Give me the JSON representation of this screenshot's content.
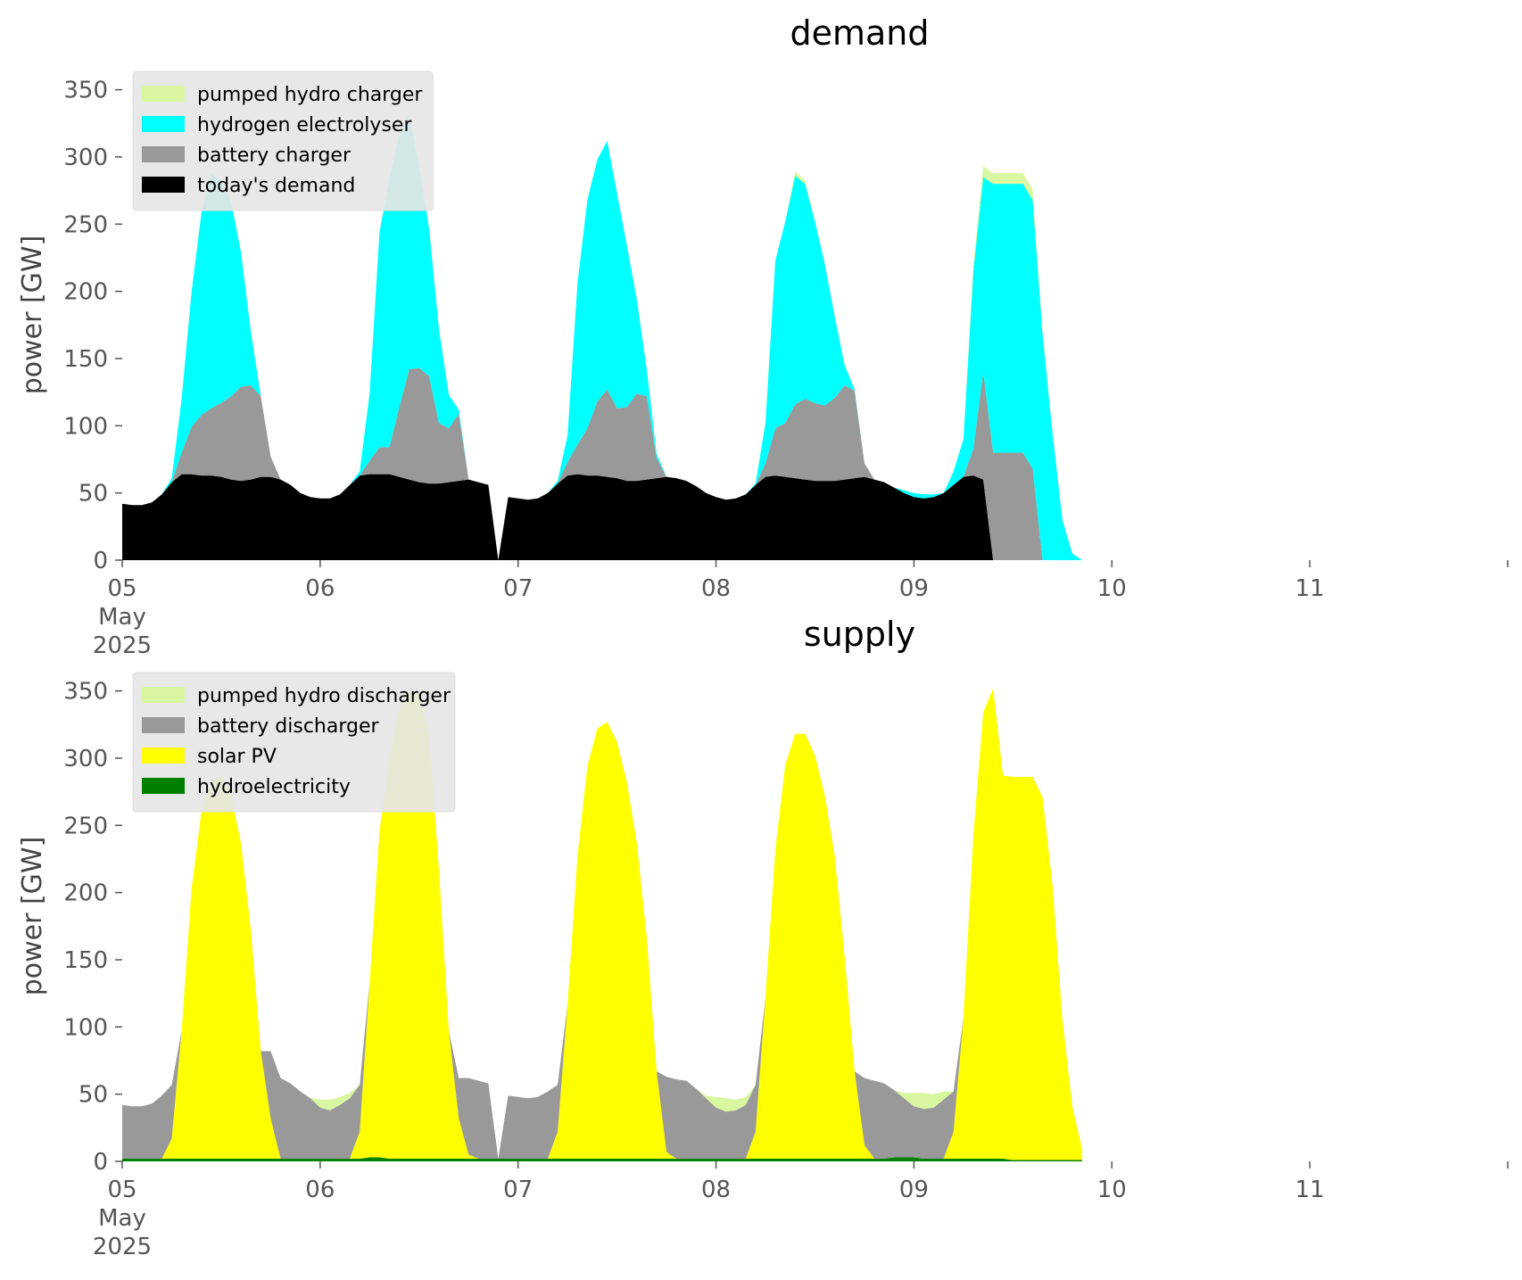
{
  "chart_data": [
    {
      "type": "area",
      "title": "demand",
      "ylabel": "power [GW]",
      "ylim": [
        0,
        365
      ],
      "xlim": [
        "2025-05-05",
        "2025-05-12"
      ],
      "yticks": [
        0,
        50,
        100,
        150,
        200,
        250,
        300,
        350
      ],
      "xticks": [
        "2025-05-05",
        "2025-05-06",
        "2025-05-07",
        "2025-05-08",
        "2025-05-09",
        "2025-05-10",
        "2025-05-11"
      ],
      "xtick_labels": [
        "05",
        "06",
        "07",
        "08",
        "09",
        "10",
        "11"
      ],
      "xtick_sublabel": [
        "May",
        "2025"
      ],
      "legend_position": "top-left",
      "legend_order": [
        "pumped hydro charger",
        "hydrogen electrolyser",
        "battery charger",
        "today's demand"
      ],
      "x": [
        5.0,
        5.05,
        5.1,
        5.15,
        5.2,
        5.25,
        5.3,
        5.35,
        5.4,
        5.45,
        5.5,
        5.55,
        5.6,
        5.65,
        5.7,
        5.75,
        5.8,
        5.85,
        5.9,
        5.95,
        6.0,
        6.05,
        6.1,
        6.15,
        6.2,
        6.25,
        6.3,
        6.35,
        6.4,
        6.45,
        6.5,
        6.55,
        6.6,
        6.65,
        6.7,
        6.75,
        6.8,
        6.85,
        6.9,
        6.95,
        7.0,
        7.05,
        7.1,
        7.15,
        7.2,
        7.25,
        7.3,
        7.35,
        7.4,
        7.45,
        7.5,
        7.55,
        7.6,
        7.65,
        7.7,
        7.75,
        7.8,
        7.85,
        7.9,
        7.95,
        8.0,
        8.05,
        8.1,
        8.15,
        8.2,
        8.25,
        8.3,
        8.35,
        8.4,
        8.45,
        8.5,
        8.55,
        8.6,
        8.65,
        8.7,
        8.75,
        8.8,
        8.85,
        8.9,
        8.95,
        9.0,
        9.05,
        9.1,
        9.15,
        9.2,
        9.25,
        9.3,
        9.35,
        9.4,
        9.45,
        9.5,
        9.55,
        9.6,
        9.65,
        9.7,
        9.75,
        9.8,
        9.85
      ],
      "series": [
        {
          "name": "today's demand",
          "color": "#000000",
          "values": [
            42,
            41,
            41,
            43,
            49,
            58,
            64,
            64,
            63,
            63,
            62,
            60,
            59,
            60,
            62,
            62,
            60,
            56,
            50,
            47,
            46,
            46,
            49,
            56,
            63,
            64,
            64,
            64,
            62,
            60,
            58,
            57,
            57,
            58,
            59,
            60,
            58,
            56,
            0,
            47,
            46,
            45,
            46,
            50,
            57,
            63,
            64,
            63,
            63,
            62,
            61,
            59,
            59,
            60,
            61,
            62,
            61,
            59,
            55,
            50,
            47,
            45,
            46,
            49,
            56,
            62,
            63,
            62,
            61,
            60,
            59,
            59,
            59,
            60,
            61,
            62,
            60,
            58,
            54,
            50,
            47,
            46,
            47,
            50,
            56,
            62,
            63,
            60,
            0,
            0,
            0,
            0,
            0,
            0,
            0,
            0,
            0,
            0
          ]
        },
        {
          "name": "battery charger",
          "color": "#999999",
          "values": [
            0,
            0,
            0,
            0,
            0,
            0,
            16,
            35,
            45,
            50,
            55,
            62,
            70,
            70,
            60,
            15,
            0,
            0,
            0,
            0,
            0,
            0,
            0,
            0,
            0,
            10,
            20,
            20,
            52,
            82,
            85,
            80,
            45,
            40,
            50,
            0,
            0,
            0,
            0,
            0,
            0,
            0,
            0,
            0,
            0,
            10,
            22,
            35,
            55,
            65,
            52,
            55,
            65,
            62,
            15,
            0,
            0,
            0,
            0,
            0,
            0,
            0,
            0,
            0,
            0,
            10,
            35,
            40,
            55,
            60,
            58,
            56,
            62,
            70,
            65,
            10,
            0,
            0,
            0,
            0,
            0,
            0,
            0,
            0,
            0,
            0,
            20,
            80,
            80,
            80,
            80,
            80,
            68,
            0,
            0,
            0,
            0,
            0
          ]
        },
        {
          "name": "hydrogen electrolyser",
          "color": "#00ffff",
          "values": [
            0,
            0,
            0,
            0,
            0,
            3,
            40,
            100,
            150,
            175,
            165,
            145,
            100,
            40,
            0,
            0,
            0,
            0,
            0,
            0,
            0,
            0,
            0,
            0,
            3,
            50,
            160,
            200,
            203,
            190,
            150,
            110,
            70,
            25,
            3,
            0,
            0,
            0,
            0,
            0,
            0,
            0,
            0,
            0,
            2,
            20,
            120,
            170,
            180,
            185,
            160,
            120,
            70,
            20,
            3,
            0,
            0,
            0,
            0,
            0,
            0,
            0,
            0,
            0,
            1,
            30,
            125,
            150,
            170,
            160,
            135,
            105,
            60,
            15,
            1,
            0,
            0,
            0,
            0,
            2,
            3,
            3,
            2,
            0,
            10,
            28,
            132,
            145,
            200,
            200,
            200,
            200,
            200,
            168,
            95,
            30,
            5,
            0
          ]
        },
        {
          "name": "pumped hydro charger",
          "color": "#d9f7a1",
          "values": [
            0,
            0,
            0,
            0,
            0,
            0,
            0,
            0,
            0,
            0,
            0,
            0,
            0,
            0,
            0,
            0,
            0,
            0,
            0,
            0,
            0,
            0,
            0,
            0,
            0,
            0,
            0,
            0,
            0,
            0,
            0,
            0,
            0,
            0,
            0,
            0,
            0,
            0,
            0,
            0,
            0,
            0,
            0,
            0,
            0,
            0,
            0,
            0,
            0,
            0,
            0,
            0,
            0,
            0,
            0,
            0,
            0,
            0,
            0,
            0,
            0,
            0,
            0,
            0,
            0,
            0,
            0,
            0,
            3,
            3,
            0,
            0,
            0,
            0,
            0,
            0,
            0,
            0,
            0,
            0,
            0,
            0,
            0,
            0,
            0,
            0,
            5,
            8,
            8,
            8,
            8,
            8,
            8,
            5,
            0,
            0,
            0,
            0
          ]
        }
      ]
    },
    {
      "type": "area",
      "title": "supply",
      "ylabel": "power [GW]",
      "ylim": [
        0,
        365
      ],
      "xlim": [
        "2025-05-05",
        "2025-05-12"
      ],
      "yticks": [
        0,
        50,
        100,
        150,
        200,
        250,
        300,
        350
      ],
      "xticks": [
        "2025-05-05",
        "2025-05-06",
        "2025-05-07",
        "2025-05-08",
        "2025-05-09",
        "2025-05-10",
        "2025-05-11"
      ],
      "xtick_labels": [
        "05",
        "06",
        "07",
        "08",
        "09",
        "10",
        "11"
      ],
      "xtick_sublabel": [
        "May",
        "2025"
      ],
      "legend_position": "top-left",
      "legend_order": [
        "pumped hydro discharger",
        "battery discharger",
        "solar PV",
        "hydroelectricity"
      ],
      "x": [
        5.0,
        5.05,
        5.1,
        5.15,
        5.2,
        5.25,
        5.3,
        5.35,
        5.4,
        5.45,
        5.5,
        5.55,
        5.6,
        5.65,
        5.7,
        5.75,
        5.8,
        5.85,
        5.9,
        5.95,
        6.0,
        6.05,
        6.1,
        6.15,
        6.2,
        6.25,
        6.3,
        6.35,
        6.4,
        6.45,
        6.5,
        6.55,
        6.6,
        6.65,
        6.7,
        6.75,
        6.8,
        6.85,
        6.9,
        6.95,
        7.0,
        7.05,
        7.1,
        7.15,
        7.2,
        7.25,
        7.3,
        7.35,
        7.4,
        7.45,
        7.5,
        7.55,
        7.6,
        7.65,
        7.7,
        7.75,
        7.8,
        7.85,
        7.9,
        7.95,
        8.0,
        8.05,
        8.1,
        8.15,
        8.2,
        8.25,
        8.3,
        8.35,
        8.4,
        8.45,
        8.5,
        8.55,
        8.6,
        8.65,
        8.7,
        8.75,
        8.8,
        8.85,
        8.9,
        8.95,
        9.0,
        9.05,
        9.1,
        9.15,
        9.2,
        9.25,
        9.3,
        9.35,
        9.4,
        9.45,
        9.5,
        9.55,
        9.6,
        9.65,
        9.7,
        9.75,
        9.8,
        9.85
      ],
      "series": [
        {
          "name": "hydroelectricity",
          "color": "#008000",
          "values": [
            2,
            2,
            2,
            2,
            2,
            2,
            2,
            2,
            2,
            2,
            2,
            2,
            2,
            2,
            2,
            2,
            2,
            2,
            2,
            2,
            2,
            2,
            2,
            2,
            2,
            3,
            3,
            2,
            2,
            2,
            2,
            2,
            2,
            2,
            2,
            2,
            2,
            2,
            2,
            2,
            2,
            2,
            2,
            2,
            2,
            2,
            2,
            2,
            2,
            2,
            2,
            2,
            2,
            2,
            2,
            2,
            2,
            2,
            2,
            2,
            2,
            2,
            2,
            2,
            2,
            2,
            2,
            2,
            2,
            2,
            2,
            2,
            2,
            2,
            2,
            2,
            2,
            2,
            3,
            3,
            3,
            2,
            2,
            2,
            2,
            2,
            2,
            2,
            2,
            2,
            1,
            1,
            1,
            1,
            1,
            1,
            1,
            1
          ]
        },
        {
          "name": "solar PV",
          "color": "#ffff00",
          "values": [
            0,
            0,
            0,
            0,
            0,
            15,
            95,
            200,
            258,
            280,
            285,
            270,
            235,
            170,
            80,
            30,
            0,
            0,
            0,
            0,
            0,
            0,
            0,
            0,
            20,
            130,
            243,
            297,
            335,
            348,
            345,
            315,
            215,
            95,
            30,
            3,
            0,
            0,
            0,
            0,
            0,
            0,
            0,
            0,
            20,
            115,
            225,
            292,
            320,
            325,
            310,
            280,
            235,
            165,
            65,
            5,
            0,
            0,
            0,
            0,
            0,
            0,
            0,
            0,
            20,
            120,
            230,
            293,
            316,
            316,
            300,
            270,
            225,
            150,
            65,
            10,
            0,
            0,
            0,
            0,
            0,
            0,
            0,
            0,
            20,
            105,
            240,
            332,
            350,
            285,
            285,
            285,
            285,
            270,
            205,
            105,
            40,
            8
          ]
        },
        {
          "name": "battery discharger",
          "color": "#999999",
          "values": [
            40,
            39,
            39,
            41,
            47,
            40,
            0,
            0,
            0,
            0,
            0,
            0,
            0,
            0,
            0,
            50,
            60,
            56,
            50,
            45,
            38,
            36,
            40,
            45,
            35,
            0,
            0,
            0,
            0,
            0,
            0,
            0,
            0,
            0,
            30,
            57,
            58,
            56,
            0,
            47,
            46,
            45,
            46,
            50,
            35,
            0,
            0,
            0,
            0,
            0,
            0,
            0,
            0,
            0,
            0,
            56,
            59,
            58,
            52,
            45,
            38,
            35,
            36,
            40,
            35,
            0,
            0,
            0,
            0,
            0,
            0,
            0,
            0,
            0,
            0,
            50,
            58,
            56,
            50,
            44,
            38,
            37,
            38,
            44,
            30,
            0,
            0,
            0,
            0,
            0,
            0,
            0,
            0,
            0,
            0,
            0,
            0,
            0
          ]
        },
        {
          "name": "pumped hydro discharger",
          "color": "#d9f7a1",
          "values": [
            0,
            0,
            0,
            0,
            0,
            0,
            0,
            0,
            0,
            0,
            0,
            0,
            0,
            0,
            0,
            0,
            0,
            0,
            0,
            0,
            6,
            8,
            6,
            4,
            0,
            0,
            0,
            0,
            0,
            0,
            0,
            0,
            0,
            0,
            0,
            0,
            0,
            0,
            0,
            0,
            0,
            0,
            0,
            0,
            0,
            0,
            0,
            0,
            0,
            0,
            0,
            0,
            0,
            0,
            0,
            0,
            0,
            0,
            0,
            2,
            8,
            10,
            8,
            6,
            0,
            0,
            0,
            0,
            0,
            0,
            0,
            0,
            0,
            0,
            0,
            0,
            0,
            0,
            0,
            4,
            10,
            12,
            10,
            6,
            0,
            0,
            0,
            0,
            0,
            0,
            0,
            0,
            0,
            0,
            0,
            0,
            0,
            0
          ]
        }
      ]
    }
  ]
}
